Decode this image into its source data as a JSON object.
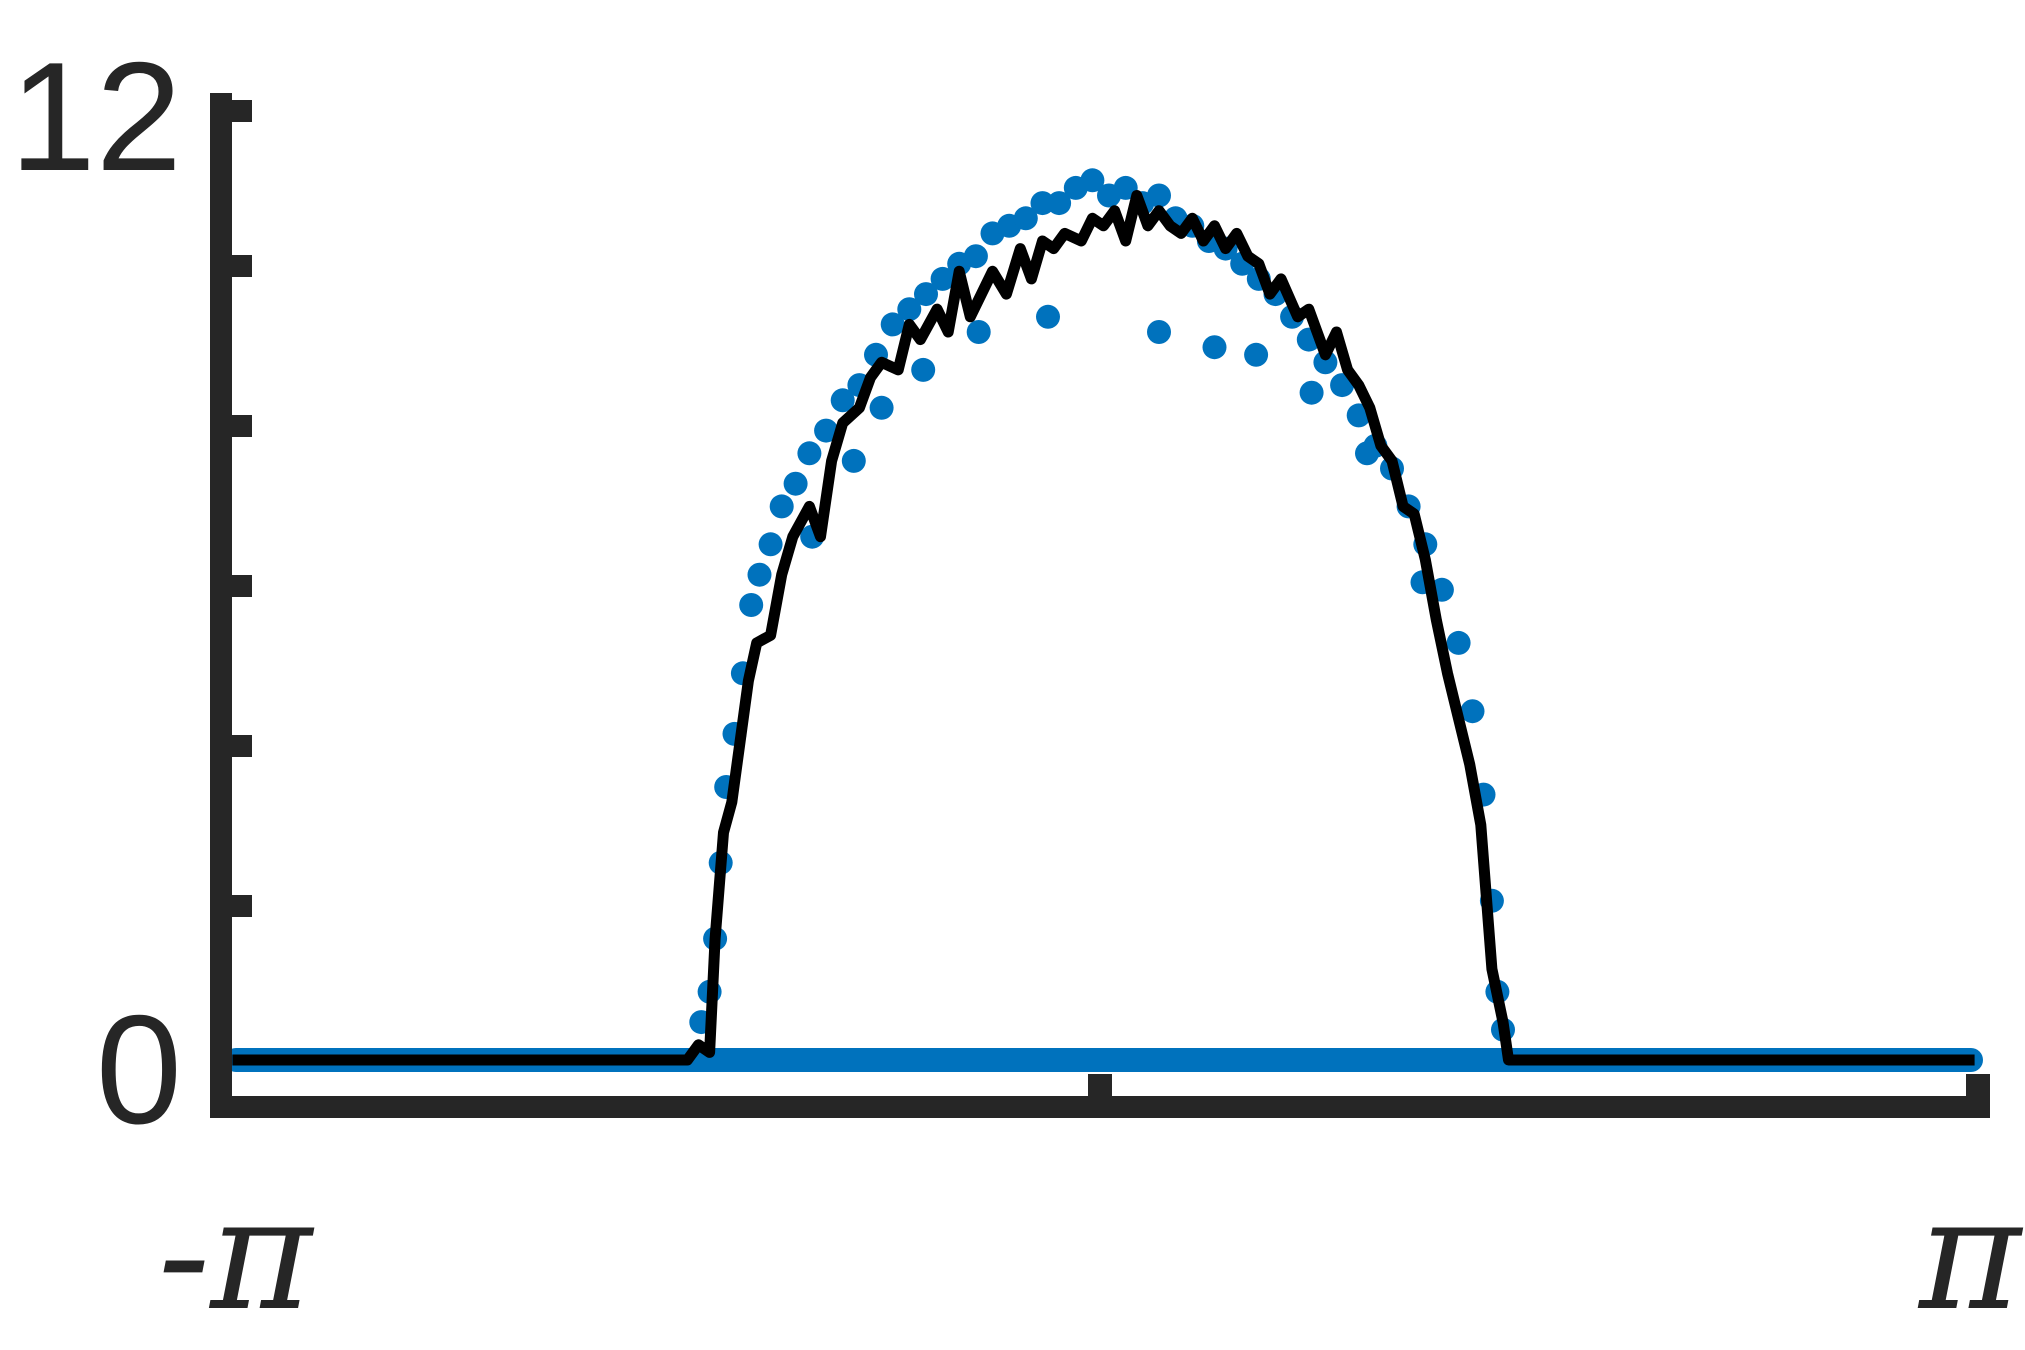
{
  "chart_data": {
    "type": "scatter",
    "title": "",
    "xlabel": "",
    "ylabel": "",
    "xlim": [
      -3.14159,
      3.14159
    ],
    "ylim": [
      0,
      12
    ],
    "y_tick_labels": [
      "0",
      "12"
    ],
    "x_tick_labels": [
      "-π",
      "π"
    ],
    "grid": false,
    "legend": "none",
    "colors": {
      "scatter": "#0072BD",
      "line": "#000000",
      "axis": "#262626"
    },
    "series": [
      {
        "kind": "scatter",
        "points": [
          [
            -1.45,
            0.5
          ],
          [
            -1.42,
            0.9
          ],
          [
            -1.4,
            1.6
          ],
          [
            -1.38,
            2.6
          ],
          [
            -1.36,
            3.6
          ],
          [
            -1.33,
            4.3
          ],
          [
            -1.3,
            5.1
          ],
          [
            -1.27,
            6.0
          ],
          [
            -1.24,
            6.4
          ],
          [
            -1.2,
            6.8
          ],
          [
            -1.16,
            7.3
          ],
          [
            -1.11,
            7.6
          ],
          [
            -1.06,
            8.0
          ],
          [
            -1.0,
            8.3
          ],
          [
            -0.94,
            8.7
          ],
          [
            -0.88,
            8.9
          ],
          [
            -0.82,
            9.3
          ],
          [
            -0.76,
            9.7
          ],
          [
            -0.7,
            9.9
          ],
          [
            -0.64,
            10.1
          ],
          [
            -0.58,
            10.3
          ],
          [
            -0.52,
            10.5
          ],
          [
            -0.46,
            10.6
          ],
          [
            -0.4,
            10.9
          ],
          [
            -0.34,
            11.0
          ],
          [
            -0.28,
            11.1
          ],
          [
            -0.22,
            11.3
          ],
          [
            -0.16,
            11.3
          ],
          [
            -0.1,
            11.5
          ],
          [
            -0.04,
            11.6
          ],
          [
            0.02,
            11.4
          ],
          [
            0.08,
            11.5
          ],
          [
            0.14,
            11.3
          ],
          [
            0.2,
            11.4
          ],
          [
            0.26,
            11.1
          ],
          [
            0.32,
            11.0
          ],
          [
            0.38,
            10.8
          ],
          [
            0.44,
            10.7
          ],
          [
            0.5,
            10.5
          ],
          [
            0.56,
            10.3
          ],
          [
            0.62,
            10.1
          ],
          [
            0.68,
            9.8
          ],
          [
            0.74,
            9.5
          ],
          [
            0.8,
            9.2
          ],
          [
            0.86,
            8.9
          ],
          [
            0.92,
            8.5
          ],
          [
            0.98,
            8.1
          ],
          [
            1.04,
            7.8
          ],
          [
            1.1,
            7.3
          ],
          [
            1.16,
            6.8
          ],
          [
            1.22,
            6.2
          ],
          [
            1.28,
            5.5
          ],
          [
            1.33,
            4.6
          ],
          [
            1.37,
            3.5
          ],
          [
            1.4,
            2.1
          ],
          [
            1.42,
            0.9
          ],
          [
            1.44,
            0.4
          ],
          [
            -0.9,
            7.9
          ],
          [
            -0.8,
            8.6
          ],
          [
            -0.65,
            9.1
          ],
          [
            -0.45,
            9.6
          ],
          [
            -0.2,
            9.8
          ],
          [
            0.2,
            9.6
          ],
          [
            0.4,
            9.4
          ],
          [
            0.55,
            9.3
          ],
          [
            0.75,
            8.8
          ],
          [
            0.95,
            8.0
          ],
          [
            -1.05,
            6.9
          ],
          [
            1.15,
            6.3
          ]
        ]
      },
      {
        "kind": "line",
        "points": [
          [
            -3.14,
            0.0
          ],
          [
            -1.5,
            0.0
          ],
          [
            -1.46,
            0.2
          ],
          [
            -1.42,
            0.1
          ],
          [
            -1.4,
            1.6
          ],
          [
            -1.37,
            3.0
          ],
          [
            -1.34,
            3.4
          ],
          [
            -1.31,
            4.2
          ],
          [
            -1.28,
            5.0
          ],
          [
            -1.25,
            5.5
          ],
          [
            -1.2,
            5.6
          ],
          [
            -1.16,
            6.4
          ],
          [
            -1.12,
            6.9
          ],
          [
            -1.06,
            7.3
          ],
          [
            -1.02,
            6.9
          ],
          [
            -0.98,
            7.9
          ],
          [
            -0.94,
            8.4
          ],
          [
            -0.88,
            8.6
          ],
          [
            -0.84,
            9.0
          ],
          [
            -0.8,
            9.2
          ],
          [
            -0.74,
            9.1
          ],
          [
            -0.7,
            9.7
          ],
          [
            -0.66,
            9.5
          ],
          [
            -0.6,
            9.9
          ],
          [
            -0.56,
            9.6
          ],
          [
            -0.52,
            10.4
          ],
          [
            -0.48,
            9.8
          ],
          [
            -0.44,
            10.1
          ],
          [
            -0.4,
            10.4
          ],
          [
            -0.35,
            10.1
          ],
          [
            -0.3,
            10.7
          ],
          [
            -0.26,
            10.3
          ],
          [
            -0.22,
            10.8
          ],
          [
            -0.18,
            10.7
          ],
          [
            -0.14,
            10.9
          ],
          [
            -0.08,
            10.8
          ],
          [
            -0.04,
            11.1
          ],
          [
            0.0,
            11.0
          ],
          [
            0.04,
            11.2
          ],
          [
            0.08,
            10.8
          ],
          [
            0.12,
            11.4
          ],
          [
            0.16,
            11.0
          ],
          [
            0.2,
            11.2
          ],
          [
            0.24,
            11.0
          ],
          [
            0.28,
            10.9
          ],
          [
            0.32,
            11.1
          ],
          [
            0.36,
            10.8
          ],
          [
            0.4,
            11.0
          ],
          [
            0.44,
            10.7
          ],
          [
            0.48,
            10.9
          ],
          [
            0.52,
            10.6
          ],
          [
            0.56,
            10.5
          ],
          [
            0.6,
            10.1
          ],
          [
            0.64,
            10.3
          ],
          [
            0.7,
            9.8
          ],
          [
            0.74,
            9.9
          ],
          [
            0.8,
            9.3
          ],
          [
            0.84,
            9.6
          ],
          [
            0.88,
            9.1
          ],
          [
            0.92,
            8.9
          ],
          [
            0.96,
            8.6
          ],
          [
            1.0,
            8.1
          ],
          [
            1.04,
            7.9
          ],
          [
            1.08,
            7.3
          ],
          [
            1.12,
            7.2
          ],
          [
            1.16,
            6.6
          ],
          [
            1.2,
            5.8
          ],
          [
            1.24,
            5.1
          ],
          [
            1.28,
            4.5
          ],
          [
            1.32,
            3.9
          ],
          [
            1.36,
            3.1
          ],
          [
            1.4,
            1.2
          ],
          [
            1.44,
            0.5
          ],
          [
            1.46,
            0.0
          ],
          [
            3.14,
            0.0
          ]
        ]
      }
    ]
  }
}
